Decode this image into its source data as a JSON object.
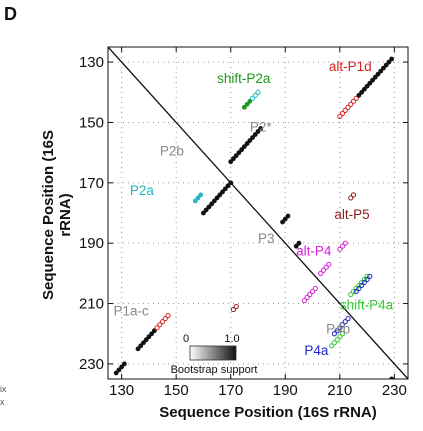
{
  "panel_label": "D",
  "left_edge_cutoff_text": {
    "a": "ix",
    "b": "x"
  },
  "chart_data": {
    "type": "scatter",
    "title": "",
    "xlabel": "Sequence Position (16S rRNA)",
    "ylabel": "Sequence Position (16S rRNA)",
    "xlim": [
      125,
      235
    ],
    "ylim": [
      125,
      235
    ],
    "y_axis_inverted": true,
    "grid": "dotted",
    "xticks": [
      130,
      150,
      170,
      190,
      210,
      230
    ],
    "yticks": [
      130,
      150,
      170,
      190,
      210,
      230
    ],
    "colorbar": {
      "label": "Bootstrap support",
      "min_label": "0",
      "max_label": "1.0"
    },
    "annotations": [
      {
        "text": "shift-P2a",
        "color": "#1a9a1a"
      },
      {
        "text": "alt-P1d",
        "color": "#dd2222"
      },
      {
        "text": "P2*",
        "color": "#888888"
      },
      {
        "text": "P2b",
        "color": "#888888"
      },
      {
        "text": "P2a",
        "color": "#22b5c2"
      },
      {
        "text": "alt-P5",
        "color": "#8b1a1a"
      },
      {
        "text": "P3",
        "color": "#888888"
      },
      {
        "text": "alt-P4",
        "color": "#d61fd6"
      },
      {
        "text": "shift-P4a",
        "color": "#33cc33"
      },
      {
        "text": "P1a-c",
        "color": "#888888"
      },
      {
        "text": "P4b",
        "color": "#888888"
      },
      {
        "text": "P4a",
        "color": "#2222cc"
      }
    ],
    "series": [
      {
        "color": "#111111",
        "style": "filled",
        "points": [
          [
            128,
            233
          ],
          [
            129,
            232
          ],
          [
            130,
            231
          ],
          [
            131,
            230
          ]
        ]
      },
      {
        "color": "#111111",
        "style": "filled",
        "points": [
          [
            136,
            225
          ],
          [
            137,
            224
          ],
          [
            138,
            223
          ],
          [
            139,
            222
          ],
          [
            140,
            221
          ],
          [
            141,
            220
          ],
          [
            142,
            219
          ]
        ]
      },
      {
        "color": "#dd2222",
        "style": "open",
        "points": [
          [
            143,
            218
          ],
          [
            144,
            217
          ],
          [
            145,
            216
          ],
          [
            146,
            215
          ],
          [
            147,
            214
          ]
        ]
      },
      {
        "color": "#111111",
        "style": "filled",
        "points": [
          [
            160,
            180
          ],
          [
            161,
            179
          ],
          [
            162,
            178
          ],
          [
            163,
            177
          ],
          [
            164,
            176
          ],
          [
            165,
            175
          ],
          [
            166,
            174
          ],
          [
            167,
            173
          ],
          [
            168,
            172
          ],
          [
            169,
            171
          ],
          [
            170,
            170
          ]
        ]
      },
      {
        "color": "#22b5c2",
        "style": "filled",
        "points": [
          [
            157,
            176
          ],
          [
            158,
            175
          ],
          [
            159,
            174
          ]
        ]
      },
      {
        "color": "#111111",
        "style": "filled",
        "points": [
          [
            170,
            163
          ],
          [
            171,
            162
          ],
          [
            172,
            161
          ],
          [
            173,
            160
          ],
          [
            174,
            159
          ],
          [
            175,
            158
          ],
          [
            176,
            157
          ],
          [
            177,
            156
          ],
          [
            178,
            155
          ],
          [
            179,
            154
          ],
          [
            180,
            153
          ],
          [
            181,
            152
          ]
        ]
      },
      {
        "color": "#1a9a1a",
        "style": "filled",
        "points": [
          [
            175,
            145
          ],
          [
            176,
            144
          ],
          [
            177,
            143
          ]
        ]
      },
      {
        "color": "#22b5c2",
        "style": "open",
        "points": [
          [
            178,
            142
          ],
          [
            179,
            141
          ],
          [
            180,
            140
          ]
        ]
      },
      {
        "color": "#111111",
        "style": "filled",
        "points": [
          [
            189,
            183
          ],
          [
            190,
            182
          ],
          [
            191,
            181
          ],
          [
            194,
            191
          ],
          [
            195,
            190
          ]
        ]
      },
      {
        "color": "#dd2222",
        "style": "open",
        "points": [
          [
            210,
            148
          ],
          [
            211,
            147
          ],
          [
            212,
            146
          ],
          [
            213,
            145
          ],
          [
            214,
            144
          ],
          [
            215,
            143
          ],
          [
            216,
            142
          ]
        ]
      },
      {
        "color": "#111111",
        "style": "filled",
        "points": [
          [
            217,
            141
          ],
          [
            218,
            140
          ],
          [
            219,
            139
          ],
          [
            220,
            138
          ],
          [
            221,
            137
          ],
          [
            222,
            136
          ],
          [
            223,
            135
          ],
          [
            224,
            134
          ],
          [
            225,
            133
          ],
          [
            226,
            132
          ],
          [
            227,
            131
          ],
          [
            228,
            130
          ],
          [
            229,
            129
          ]
        ]
      },
      {
        "color": "#8b1a1a",
        "style": "open",
        "points": [
          [
            214,
            175
          ],
          [
            215,
            174
          ],
          [
            171,
            212
          ],
          [
            172,
            211
          ]
        ]
      },
      {
        "color": "#d61fd6",
        "style": "open",
        "points": [
          [
            197,
            209
          ],
          [
            198,
            208
          ],
          [
            199,
            207
          ],
          [
            200,
            206
          ],
          [
            201,
            205
          ],
          [
            203,
            200
          ],
          [
            204,
            199
          ],
          [
            205,
            198
          ],
          [
            206,
            197
          ],
          [
            210,
            192
          ],
          [
            211,
            191
          ],
          [
            212,
            190
          ]
        ]
      },
      {
        "color": "#33cc33",
        "style": "open",
        "points": [
          [
            207,
            224
          ],
          [
            208,
            223
          ],
          [
            209,
            222
          ],
          [
            210,
            221
          ],
          [
            211,
            220
          ],
          [
            214,
            207
          ],
          [
            215,
            206
          ],
          [
            216,
            205
          ],
          [
            217,
            204
          ],
          [
            218,
            203
          ],
          [
            219,
            202
          ],
          [
            220,
            201
          ]
        ]
      },
      {
        "color": "#2222cc",
        "style": "open",
        "points": [
          [
            208,
            220
          ],
          [
            209,
            219
          ],
          [
            210,
            218
          ],
          [
            211,
            217
          ],
          [
            212,
            216
          ],
          [
            213,
            215
          ],
          [
            216,
            206
          ],
          [
            217,
            205
          ],
          [
            218,
            204
          ],
          [
            219,
            203
          ],
          [
            220,
            202
          ],
          [
            221,
            201
          ]
        ]
      },
      {
        "color": "#111111",
        "style": "filled",
        "points": [
          [
            227,
            237
          ],
          [
            228,
            236
          ],
          [
            229,
            235
          ]
        ]
      }
    ]
  }
}
